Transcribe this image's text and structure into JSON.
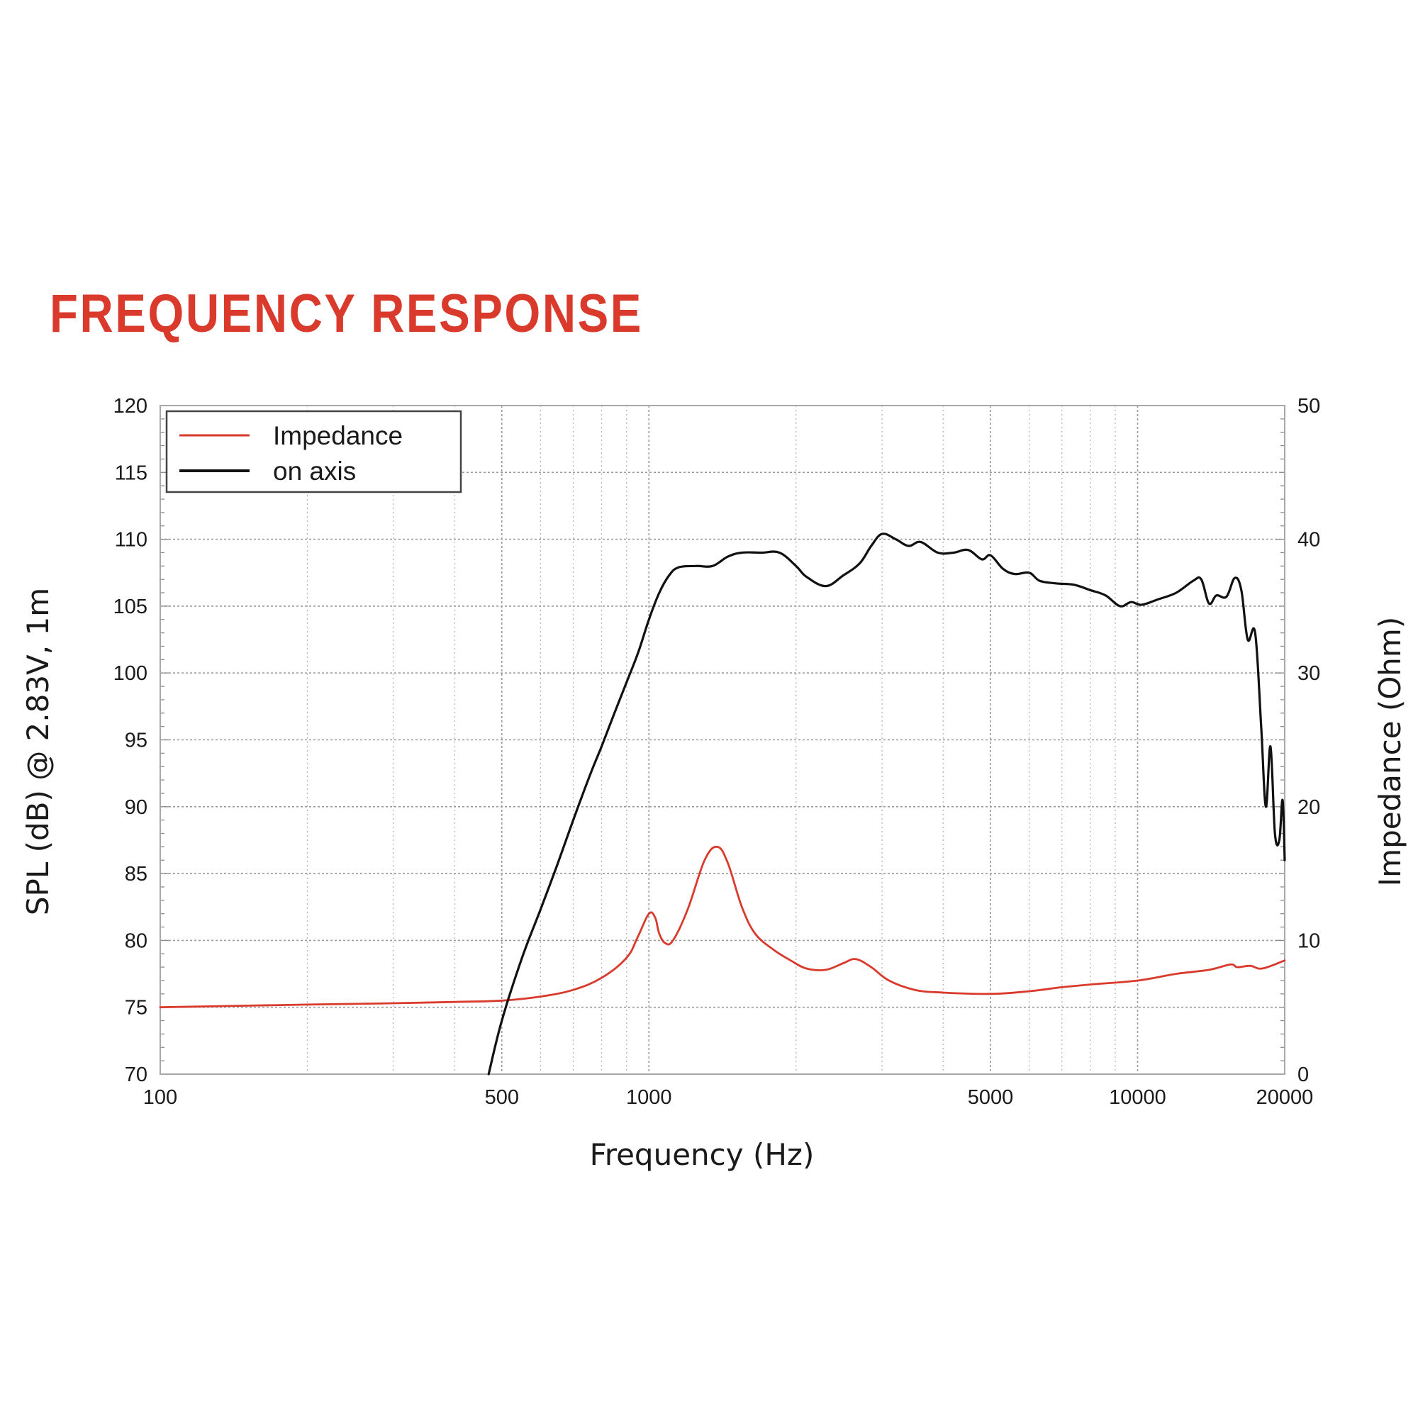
{
  "chart_data": {
    "type": "line",
    "title": "FREQUENCY RESPONSE",
    "xlabel": "Frequency (Hz)",
    "ylabel_left": "SPL (dB) @ 2.83V, 1m",
    "ylabel_right": "Impedance (Ohm)",
    "x_scale": "log",
    "xlim": [
      100,
      20000
    ],
    "ylim_left": [
      70,
      120
    ],
    "ylim_right": [
      0,
      50
    ],
    "x_ticks": [
      100,
      500,
      1000,
      5000,
      10000,
      20000
    ],
    "x_tick_labels": [
      "100",
      "500",
      "1000",
      "5000",
      "10000",
      "20000"
    ],
    "y_left_ticks": [
      70,
      75,
      80,
      85,
      90,
      95,
      100,
      105,
      110,
      115,
      120
    ],
    "y_left_tick_labels": [
      "70",
      "75",
      "80",
      "85",
      "90",
      "95",
      "100",
      "105",
      "110",
      "115",
      "120"
    ],
    "y_right_ticks": [
      0,
      10,
      20,
      30,
      40,
      50
    ],
    "y_right_tick_labels": [
      "0",
      "10",
      "20",
      "30",
      "40",
      "50"
    ],
    "grid": true,
    "legend_position": "top-left",
    "series": [
      {
        "name": "Impedance",
        "color": "#d93a2b",
        "axis": "right",
        "points": [
          [
            100,
            5.0
          ],
          [
            200,
            5.2
          ],
          [
            300,
            5.3
          ],
          [
            400,
            5.4
          ],
          [
            500,
            5.5
          ],
          [
            600,
            5.8
          ],
          [
            700,
            6.3
          ],
          [
            800,
            7.2
          ],
          [
            900,
            8.7
          ],
          [
            950,
            10.3
          ],
          [
            1000,
            12.0
          ],
          [
            1030,
            11.7
          ],
          [
            1050,
            10.5
          ],
          [
            1080,
            9.8
          ],
          [
            1120,
            10.0
          ],
          [
            1200,
            12.3
          ],
          [
            1300,
            16.0
          ],
          [
            1380,
            17.0
          ],
          [
            1450,
            15.8
          ],
          [
            1550,
            12.5
          ],
          [
            1650,
            10.5
          ],
          [
            1800,
            9.3
          ],
          [
            1950,
            8.5
          ],
          [
            2100,
            7.9
          ],
          [
            2300,
            7.8
          ],
          [
            2500,
            8.3
          ],
          [
            2650,
            8.6
          ],
          [
            2850,
            8.0
          ],
          [
            3100,
            7.0
          ],
          [
            3500,
            6.3
          ],
          [
            4000,
            6.1
          ],
          [
            5000,
            6.0
          ],
          [
            6000,
            6.2
          ],
          [
            7000,
            6.5
          ],
          [
            8000,
            6.7
          ],
          [
            10000,
            7.0
          ],
          [
            12000,
            7.5
          ],
          [
            14000,
            7.8
          ],
          [
            15500,
            8.2
          ],
          [
            16000,
            8.0
          ],
          [
            17000,
            8.1
          ],
          [
            18000,
            7.9
          ],
          [
            20000,
            8.5
          ]
        ]
      },
      {
        "name": "on axis",
        "color": "#111111",
        "axis": "left",
        "points": [
          [
            470,
            70.0
          ],
          [
            500,
            74.0
          ],
          [
            550,
            78.7
          ],
          [
            600,
            82.3
          ],
          [
            650,
            85.7
          ],
          [
            700,
            89.0
          ],
          [
            760,
            92.5
          ],
          [
            800,
            94.5
          ],
          [
            850,
            97.0
          ],
          [
            900,
            99.3
          ],
          [
            950,
            101.5
          ],
          [
            1000,
            104.0
          ],
          [
            1050,
            106.0
          ],
          [
            1100,
            107.3
          ],
          [
            1150,
            107.9
          ],
          [
            1250,
            108.0
          ],
          [
            1350,
            108.0
          ],
          [
            1450,
            108.7
          ],
          [
            1550,
            109.0
          ],
          [
            1700,
            109.0
          ],
          [
            1850,
            109.0
          ],
          [
            2000,
            108.0
          ],
          [
            2100,
            107.2
          ],
          [
            2300,
            106.5
          ],
          [
            2500,
            107.3
          ],
          [
            2700,
            108.2
          ],
          [
            2850,
            109.5
          ],
          [
            3000,
            110.4
          ],
          [
            3200,
            110.0
          ],
          [
            3400,
            109.5
          ],
          [
            3600,
            109.8
          ],
          [
            3900,
            109.0
          ],
          [
            4200,
            109.0
          ],
          [
            4500,
            109.2
          ],
          [
            4800,
            108.5
          ],
          [
            5000,
            108.8
          ],
          [
            5300,
            107.8
          ],
          [
            5600,
            107.4
          ],
          [
            6000,
            107.5
          ],
          [
            6300,
            106.9
          ],
          [
            6800,
            106.7
          ],
          [
            7400,
            106.6
          ],
          [
            8000,
            106.2
          ],
          [
            8600,
            105.8
          ],
          [
            9200,
            105.0
          ],
          [
            9700,
            105.3
          ],
          [
            10200,
            105.1
          ],
          [
            11000,
            105.5
          ],
          [
            12000,
            106.0
          ],
          [
            13000,
            106.9
          ],
          [
            13500,
            107.0
          ],
          [
            14000,
            105.2
          ],
          [
            14500,
            105.8
          ],
          [
            15200,
            105.7
          ],
          [
            15800,
            107.1
          ],
          [
            16300,
            106.2
          ],
          [
            16800,
            102.5
          ],
          [
            17400,
            103.0
          ],
          [
            17900,
            96.0
          ],
          [
            18300,
            90.0
          ],
          [
            18700,
            94.5
          ],
          [
            19100,
            88.0
          ],
          [
            19500,
            87.5
          ],
          [
            19800,
            90.5
          ],
          [
            20000,
            86.0
          ]
        ]
      }
    ]
  }
}
